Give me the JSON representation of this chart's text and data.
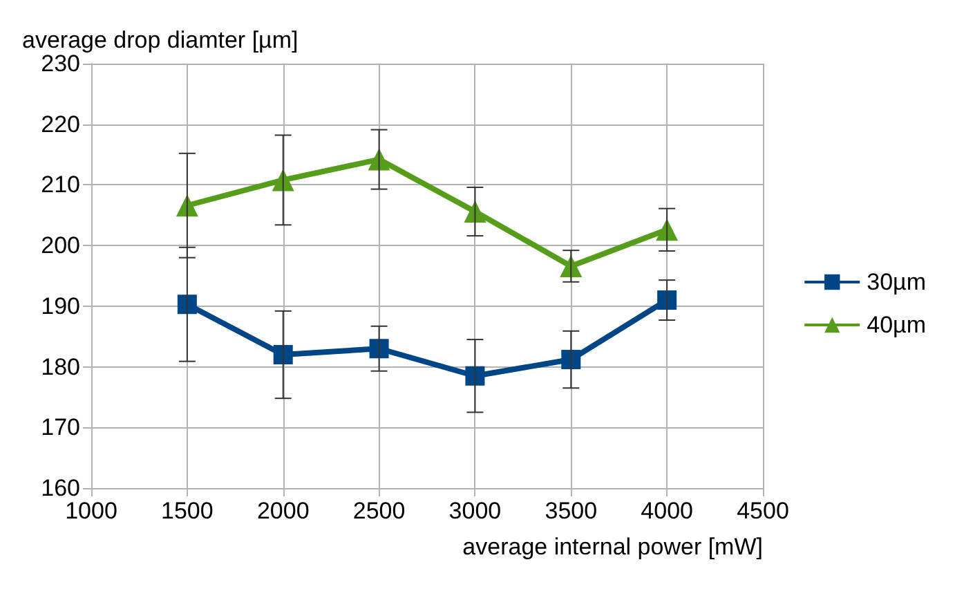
{
  "chart_data": {
    "type": "line",
    "xlabel": "average internal power [mW]",
    "ylabel": "average drop diamter [µm]",
    "x": [
      1500,
      2000,
      2500,
      3000,
      3500,
      4000
    ],
    "series": [
      {
        "name": "30µm",
        "color": "#004586",
        "marker": "square",
        "values": [
          190.3,
          182,
          183,
          178.5,
          181.2,
          191
        ],
        "errors": [
          9.4,
          7.2,
          3.7,
          6,
          4.7,
          3.3
        ]
      },
      {
        "name": "40µm",
        "color": "#579d1c",
        "marker": "triangle",
        "values": [
          206.6,
          210.8,
          214.2,
          205.6,
          196.6,
          202.6
        ],
        "errors": [
          8.6,
          7.4,
          4.9,
          4,
          2.6,
          3.5
        ]
      }
    ],
    "xlim": [
      1000,
      4500
    ],
    "xticks": [
      1000,
      1500,
      2000,
      2500,
      3000,
      3500,
      4000,
      4500
    ],
    "ylim": [
      160,
      230
    ],
    "yticks": [
      160,
      170,
      180,
      190,
      200,
      210,
      220,
      230
    ],
    "grid": true,
    "legend": "right"
  }
}
